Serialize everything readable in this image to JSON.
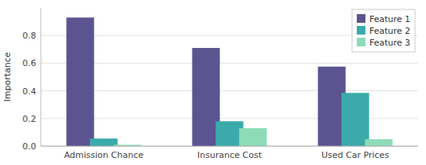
{
  "chart_data": {
    "type": "bar",
    "categories": [
      "Admission Chance",
      "Insurance Cost",
      "Used Car Prices"
    ],
    "series": [
      {
        "name": "Feature 1",
        "color": "#5b5490",
        "values": [
          0.93,
          0.71,
          0.575
        ]
      },
      {
        "name": "Feature 2",
        "color": "#3aabaa",
        "values": [
          0.055,
          0.18,
          0.385
        ]
      },
      {
        "name": "Feature 3",
        "color": "#8ddcb8",
        "values": [
          0.01,
          0.13,
          0.05
        ]
      }
    ],
    "ylabel": "Importance",
    "ylim": [
      0,
      1.0
    ],
    "yticks": [
      {
        "value": 0.0,
        "label": "0.0"
      },
      0.2,
      0.4,
      0.6,
      0.8
    ],
    "grid": true,
    "legend": "upper right"
  }
}
